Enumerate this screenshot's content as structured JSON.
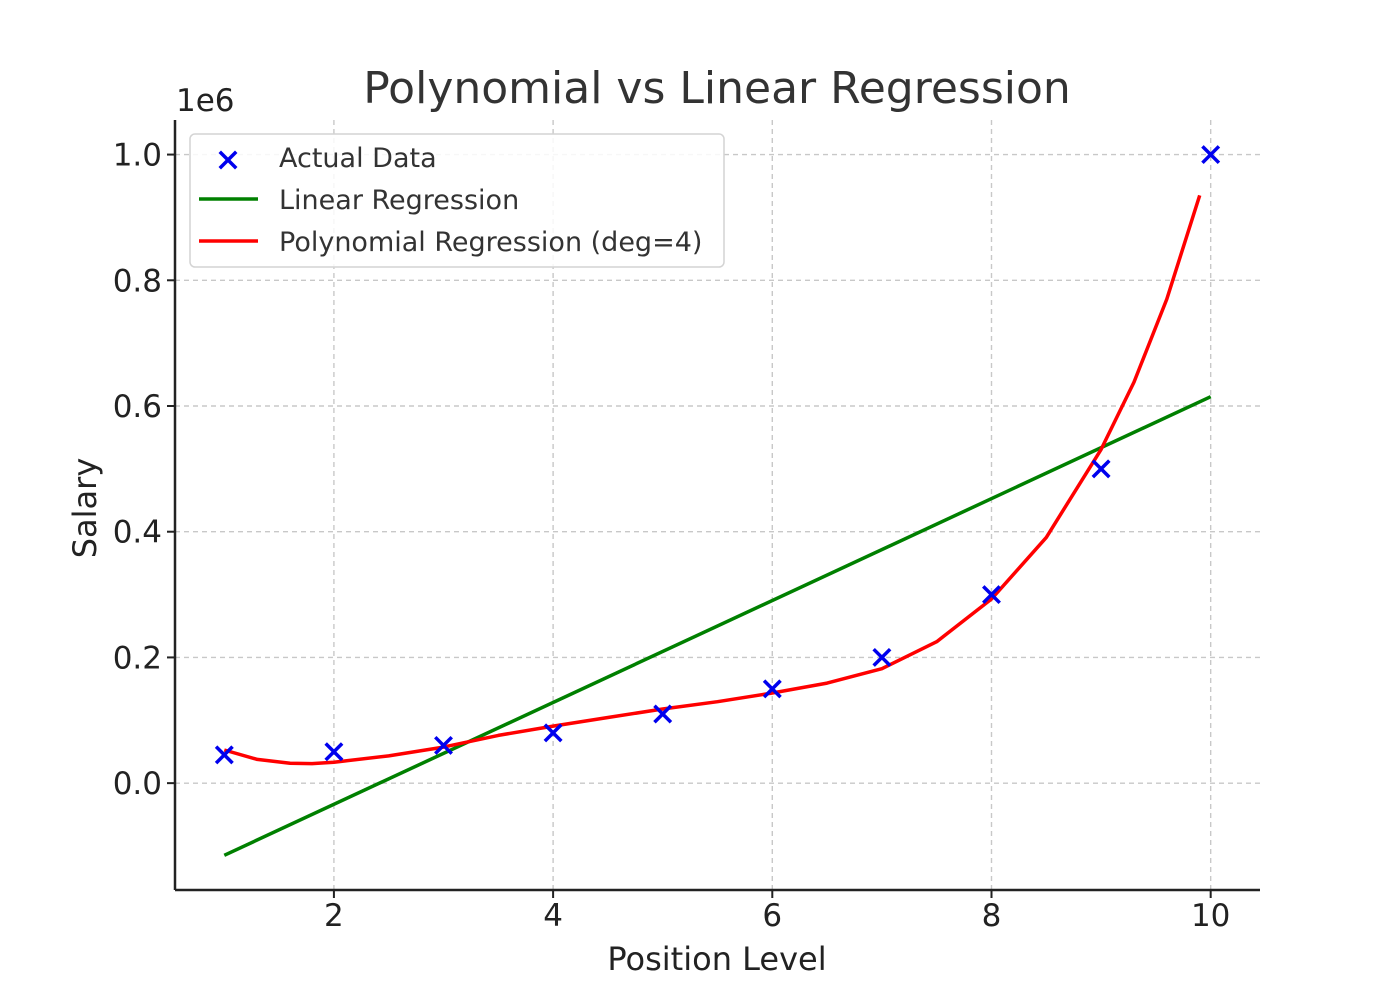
{
  "chart_data": {
    "type": "line",
    "title": "Polynomial vs Linear Regression",
    "xlabel": "Position Level",
    "ylabel": "Salary",
    "y_offset_label": "1e6",
    "xlim": [
      0.55,
      10.45
    ],
    "ylim": [
      -0.17,
      1.055
    ],
    "xticks": [
      2,
      4,
      6,
      8,
      10
    ],
    "xtick_labels": [
      "2",
      "4",
      "6",
      "8",
      "10"
    ],
    "yticks": [
      0.0,
      0.2,
      0.4,
      0.6,
      0.8,
      1.0
    ],
    "ytick_labels": [
      "0.0",
      "0.2",
      "0.4",
      "0.6",
      "0.8",
      "1.0"
    ],
    "grid": true,
    "legend_position": "top-left",
    "series": [
      {
        "name": "Actual Data",
        "kind": "scatter",
        "marker": "x",
        "color": "#0000ee",
        "x": [
          1,
          2,
          3,
          4,
          5,
          6,
          7,
          8,
          9,
          10
        ],
        "y": [
          0.045,
          0.05,
          0.06,
          0.08,
          0.11,
          0.15,
          0.2,
          0.3,
          0.5,
          1.0
        ]
      },
      {
        "name": "Linear Regression",
        "kind": "line",
        "color": "#008000",
        "x": [
          1,
          10
        ],
        "y": [
          -0.1148,
          0.6148
        ]
      },
      {
        "name": "Polynomial Regression (deg=4)",
        "kind": "line",
        "color": "#ff0000",
        "x": [
          1.0,
          1.3,
          1.6,
          1.8,
          2.0,
          2.5,
          3.0,
          3.5,
          4.0,
          4.5,
          5.0,
          5.5,
          6.0,
          6.5,
          7.0,
          7.5,
          8.0,
          8.5,
          9.0,
          9.3,
          9.6,
          9.9
        ],
        "y": [
          0.0528,
          0.0378,
          0.0317,
          0.0311,
          0.0333,
          0.0434,
          0.0573,
          0.0759,
          0.0908,
          0.1044,
          0.1179,
          0.1296,
          0.1434,
          0.1592,
          0.182,
          0.2251,
          0.293,
          0.391,
          0.531,
          0.638,
          0.77,
          0.935
        ]
      }
    ]
  }
}
